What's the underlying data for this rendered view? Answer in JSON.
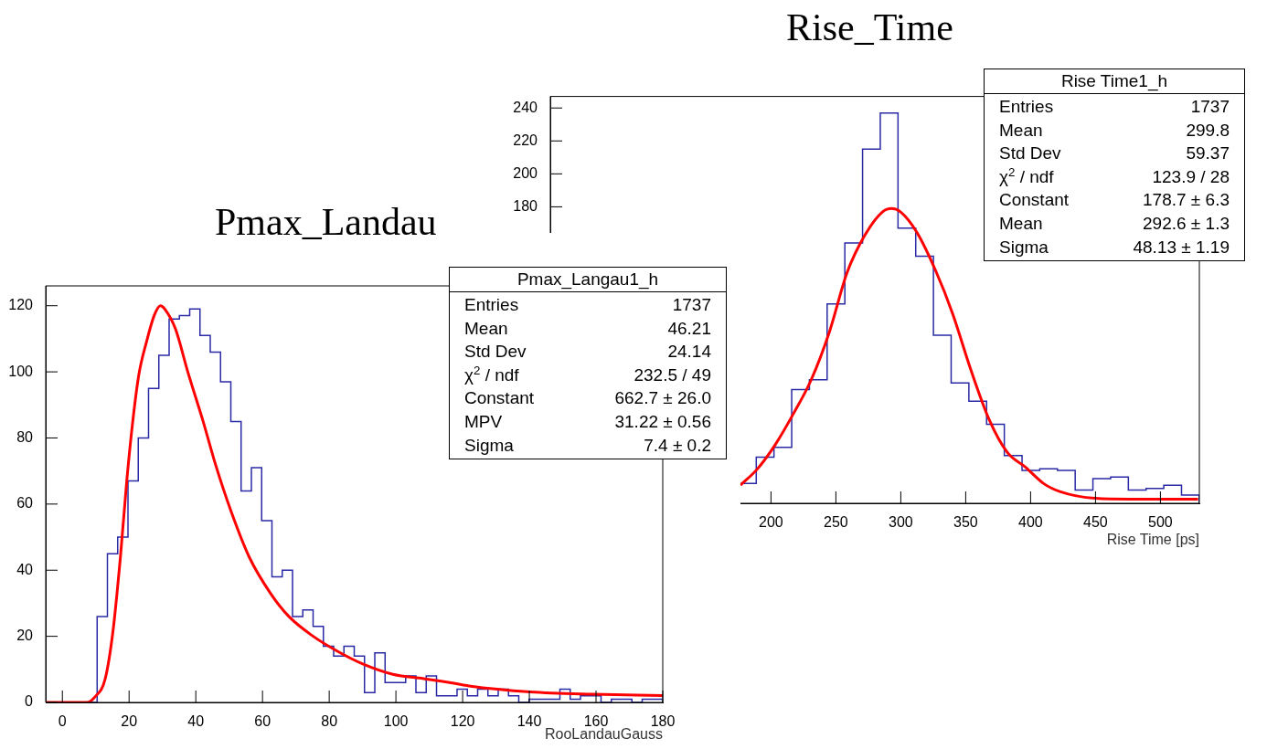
{
  "chart_data": [
    {
      "type": "histogram",
      "title": "Pmax_Landau",
      "xlabel": "RooLandauGauss",
      "xlim": [
        -5,
        180
      ],
      "ylim": [
        0,
        126
      ],
      "xticks": [
        0,
        20,
        40,
        60,
        80,
        100,
        120,
        140,
        160,
        180
      ],
      "yticks": [
        0,
        20,
        40,
        60,
        80,
        100,
        120
      ],
      "legend": false,
      "bins": [
        -5,
        -1.92,
        1.17,
        4.25,
        7.33,
        10.42,
        13.5,
        16.58,
        19.67,
        22.75,
        25.83,
        28.92,
        32,
        35.08,
        38.17,
        41.25,
        44.33,
        47.42,
        50.5,
        53.58,
        56.67,
        59.75,
        62.83,
        65.92,
        69,
        72.08,
        75.17,
        78.25,
        81.33,
        84.42,
        87.5,
        90.58,
        93.67,
        96.75,
        99.83,
        102.92,
        106,
        109.08,
        112.17,
        115.25,
        118.33,
        121.42,
        124.5,
        127.58,
        130.67,
        133.75,
        136.83,
        139.92,
        143,
        146.08,
        149.17,
        152.25,
        155.33,
        158.42,
        161.5,
        164.58,
        167.67,
        170.75,
        173.83,
        176.92,
        180
      ],
      "series": [
        {
          "type": "histogram",
          "color": "#2a2aa6",
          "values": [
            0,
            0,
            0,
            0,
            0,
            26,
            45,
            50,
            67,
            80,
            95,
            105,
            116,
            117,
            119,
            111,
            106,
            97,
            85,
            64,
            71,
            55,
            38,
            40,
            26,
            28,
            23,
            17,
            14,
            17,
            14,
            3,
            15,
            6,
            6,
            8,
            3,
            8,
            2,
            2,
            4,
            2,
            4,
            2,
            4,
            2,
            0,
            1,
            1,
            1,
            4,
            1,
            2,
            2,
            0,
            1,
            1,
            0,
            1,
            1
          ]
        },
        {
          "type": "line",
          "color": "#ff0000",
          "x": [
            -5,
            7.3,
            9.8,
            12.8,
            15.1,
            17.4,
            19.3,
            21.1,
            22.9,
            25.2,
            27.5,
            29.4,
            30.7,
            33.9,
            37.6,
            42.2,
            45.9,
            50.5,
            56,
            62.4,
            67.9,
            75.2,
            82.6,
            89.9,
            99.1,
            108.3,
            117.4,
            121.9,
            140.3,
            158.8,
            180
          ],
          "values": [
            0,
            0,
            1.7,
            7,
            21,
            44,
            67,
            85,
            99,
            109,
            117,
            120,
            119,
            113,
            100,
            85,
            72,
            58,
            44,
            33,
            26,
            20,
            15.4,
            11.7,
            8.5,
            7.2,
            5.8,
            5,
            3.2,
            2.5,
            2.1
          ]
        }
      ],
      "annotations": [
        "Pmax_Langau1_h",
        "Entries\t1737",
        "Mean\t46.21",
        "Std Dev\t24.14",
        "χ$^{2}$ / ndf\t232.5 / 49",
        "Constant\t662.7 ± 26.0",
        "MPV\t31.22 ± 0.56",
        "Sigma\t7.4 ± 0.2"
      ]
    },
    {
      "type": "histogram",
      "title": "Rise_Time",
      "xlabel": "Rise Time [ps]",
      "xlim": [
        30,
        530
      ],
      "ylim": [
        0,
        247
      ],
      "xticks": [
        200,
        250,
        300,
        350,
        400,
        450,
        500
      ],
      "yticks": [
        180,
        200,
        220,
        240
      ],
      "legend": false,
      "bins": [
        175,
        188.65,
        202.3,
        215.95,
        229.6,
        243.25,
        256.9,
        270.55,
        284.2,
        297.85,
        311.5,
        325.15,
        338.8,
        352.45,
        366.1,
        379.75,
        393.4,
        407.05,
        420.7,
        434.35,
        448,
        461.65,
        475.3,
        488.95,
        502.6,
        516.25,
        529.9
      ],
      "series": [
        {
          "type": "histogram",
          "color": "#2a2aa6",
          "values": [
            12,
            28,
            34,
            69,
            75,
            121,
            158,
            215,
            237,
            167,
            150,
            102,
            73,
            62,
            48,
            29,
            20,
            21,
            20,
            8,
            15,
            16,
            8,
            9,
            11,
            5
          ]
        },
        {
          "type": "line",
          "color": "#ff0000",
          "x": [
            176.5,
            189.7,
            203.6,
            217,
            231,
            245,
            258.6,
            272.5,
            286,
            293,
            299.7,
            312,
            327,
            340,
            354,
            368,
            382,
            396,
            410,
            423,
            450,
            477,
            529
          ],
          "values": [
            11,
            21,
            36,
            54,
            75,
            104,
            140,
            163,
            177,
            179,
            177,
            165,
            141,
            115,
            81,
            51,
            31,
            22,
            12,
            7,
            3,
            2.5,
            2.5
          ]
        }
      ],
      "annotations": [
        "Rise Time1_h",
        "Entries\t1737",
        "Mean\t299.8",
        "Std Dev\t59.37",
        "χ$^{2}$ / ndf\t123.9 / 28",
        "Constant\t178.7 ± 6.3",
        "Mean\t292.6 ± 1.3",
        "Sigma\t48.13 ± 1.19"
      ]
    }
  ]
}
